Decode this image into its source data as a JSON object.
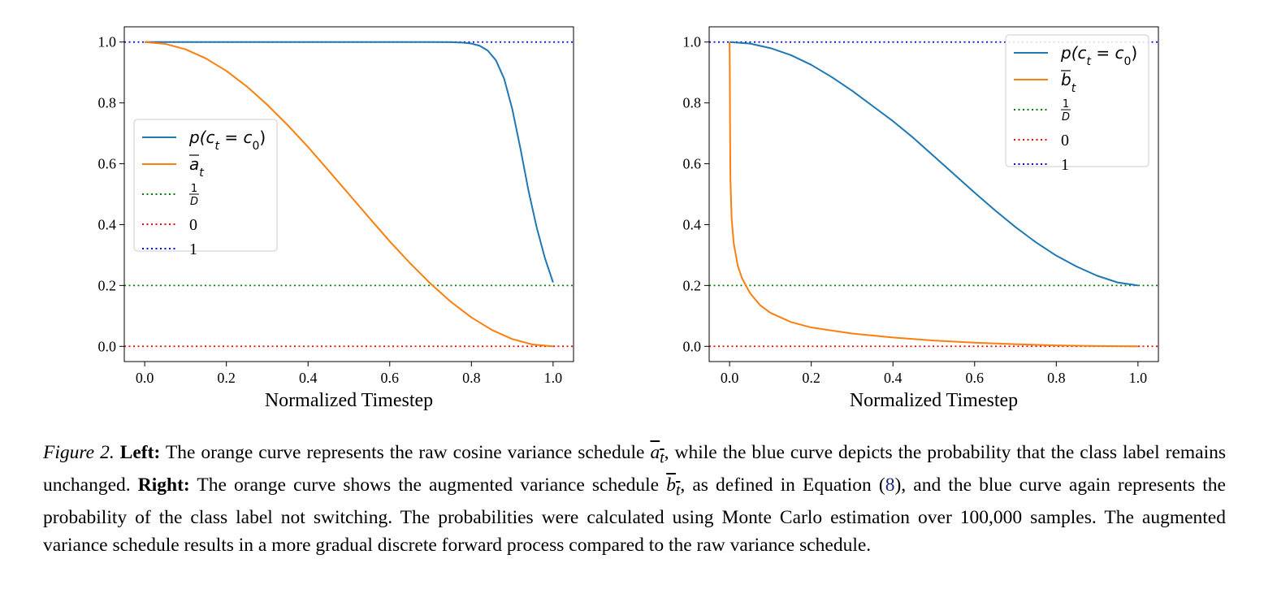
{
  "figure": {
    "caption": {
      "label": "Figure 2.",
      "left_head": "Left:",
      "left_text_1": "The orange curve represents the raw cosine variance schedule",
      "left_sym": "a",
      "left_sub": "t",
      "left_text_2": ", while the blue curve depicts the probability that the class label remains unchanged.",
      "right_head": "Right:",
      "right_text_1": "The orange curve shows the augmented variance schedule",
      "right_sym": "b",
      "right_sub": "t",
      "right_text_2": ", as defined in Equation (",
      "eq_ref": "8",
      "right_text_3": "), and the blue curve again represents the probability of the class label not switching. The probabilities were calculated using Monte Carlo estimation over 100,000 samples. The augmented variance schedule results in a more gradual discrete forward process compared to the raw variance schedule."
    }
  },
  "colors": {
    "blue": "#1f77b4",
    "orange": "#ff7f0e",
    "green": "#008000",
    "red": "#ff0000",
    "navy": "#0000ff"
  },
  "chart_data": [
    {
      "type": "line",
      "panel": "left",
      "xlabel": "Normalized Timestep",
      "ylabel": "",
      "xlim": [
        -0.05,
        1.05
      ],
      "ylim": [
        -0.05,
        1.05
      ],
      "xticks": [
        "0.0",
        "0.2",
        "0.4",
        "0.6",
        "0.8",
        "1.0"
      ],
      "yticks": [
        "0.0",
        "0.2",
        "0.4",
        "0.6",
        "0.8",
        "1.0"
      ],
      "legend_position": "center-left",
      "legend": {
        "p": "p(c",
        "p_sub": "t",
        "p_eq": " = c",
        "p_sub2": "0",
        "p_close": ")",
        "sched_sym": "a",
        "sched_sub": "t",
        "frac_num": "1",
        "frac_den": "D",
        "zero": "0",
        "one": "1"
      },
      "series": [
        {
          "key": "prob",
          "color": "blue",
          "x": [
            0,
            0.1,
            0.2,
            0.3,
            0.4,
            0.5,
            0.6,
            0.7,
            0.75,
            0.78,
            0.8,
            0.82,
            0.84,
            0.86,
            0.88,
            0.9,
            0.92,
            0.94,
            0.96,
            0.98,
            1.0
          ],
          "y": [
            1.0,
            1.0,
            1.0,
            1.0,
            1.0,
            1.0,
            1.0,
            1.0,
            0.9995,
            0.998,
            0.995,
            0.988,
            0.972,
            0.94,
            0.88,
            0.78,
            0.65,
            0.51,
            0.39,
            0.29,
            0.21
          ]
        },
        {
          "key": "schedule",
          "color": "orange",
          "x": [
            0,
            0.05,
            0.1,
            0.15,
            0.2,
            0.25,
            0.3,
            0.35,
            0.4,
            0.45,
            0.5,
            0.55,
            0.6,
            0.65,
            0.7,
            0.75,
            0.8,
            0.85,
            0.9,
            0.95,
            1.0
          ],
          "y": [
            1.0,
            0.994,
            0.976,
            0.946,
            0.905,
            0.854,
            0.794,
            0.727,
            0.655,
            0.578,
            0.5,
            0.422,
            0.345,
            0.273,
            0.206,
            0.146,
            0.095,
            0.054,
            0.024,
            0.006,
            0.0
          ]
        }
      ],
      "hlines": [
        {
          "y": 0.2,
          "color": "green"
        },
        {
          "y": 0.0,
          "color": "red"
        },
        {
          "y": 1.0,
          "color": "navy"
        }
      ]
    },
    {
      "type": "line",
      "panel": "right",
      "xlabel": "Normalized Timestep",
      "ylabel": "",
      "xlim": [
        -0.05,
        1.05
      ],
      "ylim": [
        -0.05,
        1.05
      ],
      "xticks": [
        "0.0",
        "0.2",
        "0.4",
        "0.6",
        "0.8",
        "1.0"
      ],
      "yticks": [
        "0.0",
        "0.2",
        "0.4",
        "0.6",
        "0.8",
        "1.0"
      ],
      "legend_position": "top-right",
      "legend": {
        "p": "p(c",
        "p_sub": "t",
        "p_eq": " = c",
        "p_sub2": "0",
        "p_close": ")",
        "sched_sym": "b",
        "sched_sub": "t",
        "frac_num": "1",
        "frac_den": "D",
        "zero": "0",
        "one": "1"
      },
      "series": [
        {
          "key": "prob",
          "color": "blue",
          "x": [
            0,
            0.05,
            0.1,
            0.15,
            0.2,
            0.25,
            0.3,
            0.35,
            0.4,
            0.45,
            0.5,
            0.55,
            0.6,
            0.65,
            0.7,
            0.75,
            0.8,
            0.85,
            0.9,
            0.95,
            1.0
          ],
          "y": [
            1.0,
            0.995,
            0.98,
            0.957,
            0.925,
            0.885,
            0.84,
            0.79,
            0.74,
            0.685,
            0.625,
            0.565,
            0.505,
            0.447,
            0.392,
            0.342,
            0.298,
            0.262,
            0.232,
            0.21,
            0.2
          ]
        },
        {
          "key": "schedule",
          "color": "orange",
          "x": [
            0,
            0.0005,
            0.001,
            0.002,
            0.005,
            0.01,
            0.02,
            0.03,
            0.05,
            0.075,
            0.1,
            0.15,
            0.2,
            0.3,
            0.4,
            0.5,
            0.6,
            0.7,
            0.8,
            0.9,
            1.0
          ],
          "y": [
            1.0,
            0.9,
            0.75,
            0.55,
            0.42,
            0.34,
            0.265,
            0.225,
            0.175,
            0.135,
            0.11,
            0.08,
            0.062,
            0.042,
            0.029,
            0.019,
            0.012,
            0.007,
            0.003,
            0.001,
            0.0
          ]
        }
      ],
      "hlines": [
        {
          "y": 0.2,
          "color": "green"
        },
        {
          "y": 0.0,
          "color": "red"
        },
        {
          "y": 1.0,
          "color": "navy"
        }
      ]
    }
  ]
}
